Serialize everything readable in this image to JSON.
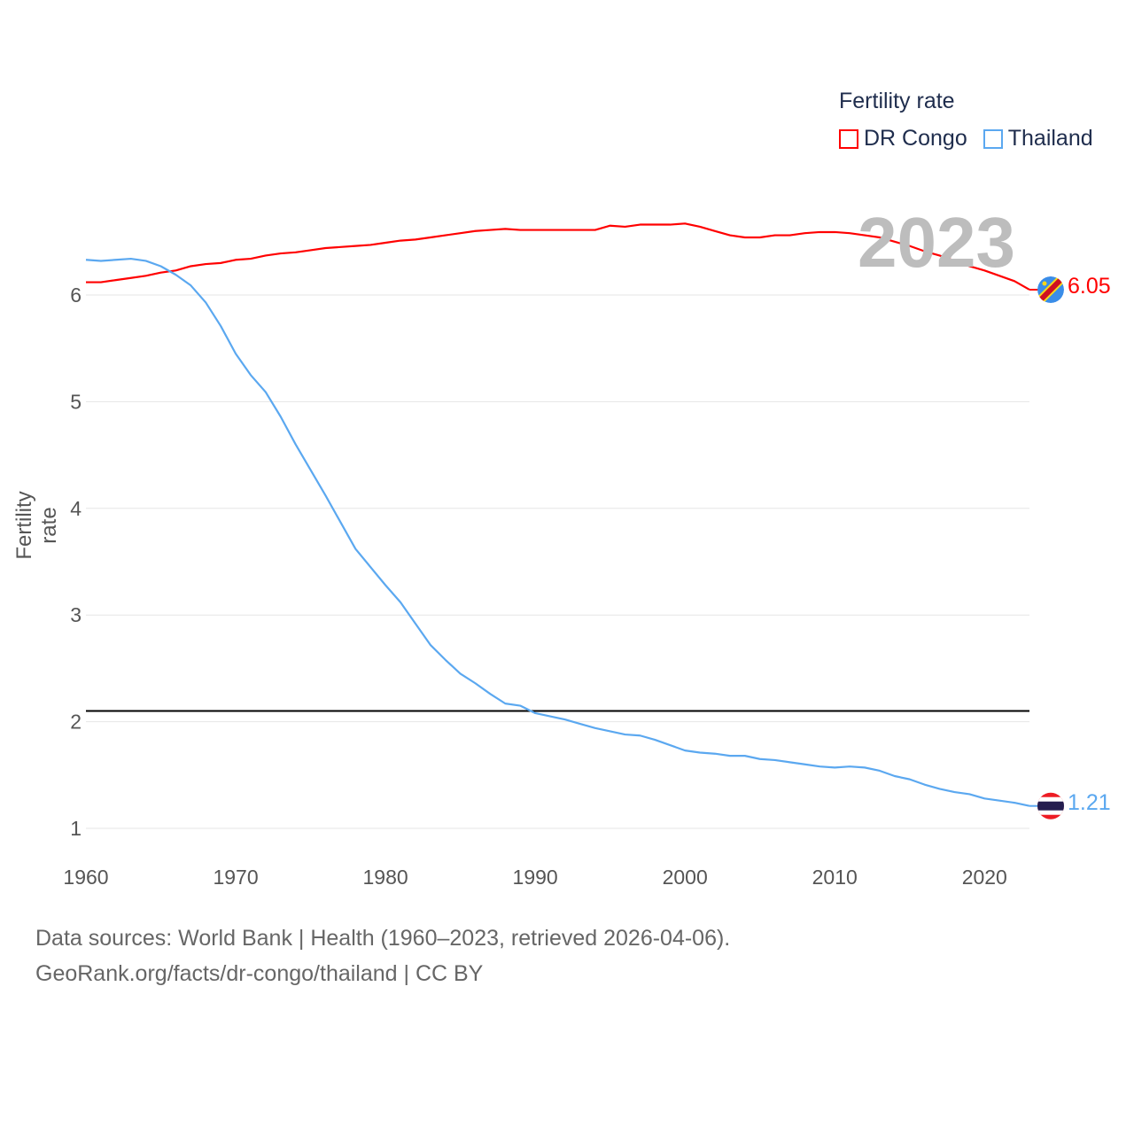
{
  "chart_data": {
    "type": "line",
    "title": "",
    "xlabel": "",
    "ylabel": "Fertility rate",
    "xlim": [
      1960,
      2023
    ],
    "ylim": [
      1,
      6.7
    ],
    "x_ticks": [
      "1960",
      "1970",
      "1980",
      "1990",
      "2000",
      "2010",
      "2020"
    ],
    "y_ticks": [
      "1",
      "2",
      "3",
      "4",
      "5",
      "6"
    ],
    "grid": true,
    "legend_title": "Fertility rate",
    "legend_placement": "top-right",
    "current_year_label": "2023",
    "reference_line": 2.1,
    "x": [
      1960,
      1961,
      1962,
      1963,
      1964,
      1965,
      1966,
      1967,
      1968,
      1969,
      1970,
      1971,
      1972,
      1973,
      1974,
      1975,
      1976,
      1977,
      1978,
      1979,
      1980,
      1981,
      1982,
      1983,
      1984,
      1985,
      1986,
      1987,
      1988,
      1989,
      1990,
      1991,
      1992,
      1993,
      1994,
      1995,
      1996,
      1997,
      1998,
      1999,
      2000,
      2001,
      2002,
      2003,
      2004,
      2005,
      2006,
      2007,
      2008,
      2009,
      2010,
      2011,
      2012,
      2013,
      2014,
      2015,
      2016,
      2017,
      2018,
      2019,
      2020,
      2021,
      2022,
      2023
    ],
    "series": [
      {
        "name": "DR Congo",
        "color": "#ff0000",
        "end_label": "6.05",
        "values": [
          6.12,
          6.12,
          6.14,
          6.16,
          6.18,
          6.21,
          6.23,
          6.27,
          6.29,
          6.3,
          6.33,
          6.34,
          6.37,
          6.39,
          6.4,
          6.42,
          6.44,
          6.45,
          6.46,
          6.47,
          6.49,
          6.51,
          6.52,
          6.54,
          6.56,
          6.58,
          6.6,
          6.61,
          6.62,
          6.61,
          6.61,
          6.61,
          6.61,
          6.61,
          6.61,
          6.65,
          6.64,
          6.66,
          6.66,
          6.66,
          6.67,
          6.64,
          6.6,
          6.56,
          6.54,
          6.54,
          6.56,
          6.56,
          6.58,
          6.59,
          6.59,
          6.58,
          6.56,
          6.54,
          6.5,
          6.46,
          6.41,
          6.37,
          6.32,
          6.27,
          6.23,
          6.18,
          6.13,
          6.05
        ]
      },
      {
        "name": "Thailand",
        "color": "#5ba8f0",
        "end_label": "1.21",
        "values": [
          6.33,
          6.32,
          6.33,
          6.34,
          6.32,
          6.27,
          6.19,
          6.09,
          5.93,
          5.71,
          5.45,
          5.25,
          5.09,
          4.86,
          4.6,
          4.36,
          4.12,
          3.87,
          3.62,
          3.45,
          3.28,
          3.12,
          2.92,
          2.72,
          2.58,
          2.45,
          2.36,
          2.26,
          2.17,
          2.15,
          2.08,
          2.05,
          2.02,
          1.98,
          1.94,
          1.91,
          1.88,
          1.87,
          1.83,
          1.78,
          1.73,
          1.71,
          1.7,
          1.68,
          1.68,
          1.65,
          1.64,
          1.62,
          1.6,
          1.58,
          1.57,
          1.58,
          1.57,
          1.54,
          1.49,
          1.46,
          1.41,
          1.37,
          1.34,
          1.32,
          1.28,
          1.26,
          1.24,
          1.21
        ]
      }
    ]
  },
  "footer": {
    "line1": "Data sources: World Bank | Health (1960–2023, retrieved 2026-04-06).",
    "line2": "GeoRank.org/facts/dr-congo/thailand | CC BY"
  }
}
